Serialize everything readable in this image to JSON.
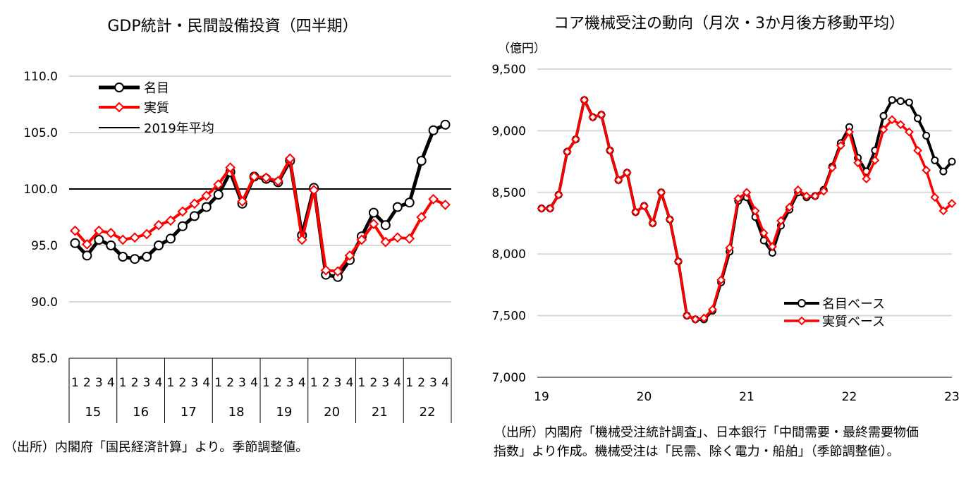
{
  "colors": {
    "nominal": "#000000",
    "real": "#ff0000",
    "grid": "#d9d9d9",
    "marker_fill": "#ffffff"
  },
  "chart_data": [
    {
      "type": "line",
      "title": "GDP統計・民間設備投資（四半期）",
      "ylim": [
        85,
        110
      ],
      "yticks": [
        "110.0",
        "105.0",
        "100.0",
        "95.0",
        "90.0",
        "85.0"
      ],
      "ytick_values": [
        110,
        105,
        100,
        95,
        90,
        85
      ],
      "quarter_labels": [
        "1",
        "2",
        "3",
        "4",
        "1",
        "2",
        "3",
        "4",
        "1",
        "2",
        "3",
        "4",
        "1",
        "2",
        "3",
        "4",
        "1",
        "2",
        "3",
        "4",
        "1",
        "2",
        "3",
        "4",
        "1",
        "2",
        "3",
        "4",
        "1",
        "2",
        "3",
        "4"
      ],
      "years": [
        "15",
        "16",
        "17",
        "18",
        "19",
        "20",
        "21",
        "22"
      ],
      "grid": true,
      "legend_position": "top-left",
      "reference_line": {
        "name": "2019年平均",
        "value": 100.0
      },
      "series": [
        {
          "name": "名目",
          "values": [
            95.2,
            94.1,
            95.5,
            95.0,
            94.0,
            93.8,
            94.0,
            95.0,
            95.6,
            96.7,
            97.6,
            98.4,
            99.5,
            101.5,
            98.7,
            101.1,
            100.9,
            100.6,
            102.5,
            95.9,
            100.1,
            92.4,
            92.2,
            93.7,
            95.8,
            97.9,
            96.8,
            98.4,
            98.8,
            102.5,
            105.2,
            105.7
          ]
        },
        {
          "name": "実質",
          "values": [
            96.3,
            95.1,
            96.3,
            96.1,
            95.5,
            95.7,
            96.0,
            96.8,
            97.2,
            98.0,
            98.7,
            99.4,
            100.4,
            101.9,
            98.9,
            101.1,
            101.0,
            100.7,
            102.7,
            95.5,
            99.9,
            92.8,
            92.7,
            94.1,
            95.5,
            96.9,
            95.3,
            95.7,
            95.6,
            97.5,
            99.1,
            98.6
          ]
        }
      ],
      "source": "（出所）内閣府「国民経済計算」より。季節調整値。"
    },
    {
      "type": "line",
      "title": "コア機械受注の動向（月次・3か月後方移動平均）",
      "ylabel": "（億円）",
      "ylim": [
        7000,
        9500
      ],
      "yticks": [
        "9,500",
        "9,000",
        "8,500",
        "8,000",
        "7,500",
        "7,000"
      ],
      "ytick_values": [
        9500,
        9000,
        8500,
        8000,
        7500,
        7000
      ],
      "xticks": [
        "19",
        "20",
        "21",
        "22",
        "23"
      ],
      "xtick_values": [
        0,
        12,
        24,
        36,
        48
      ],
      "grid": true,
      "legend_position": "bottom-right",
      "series": [
        {
          "name": "名目ベース",
          "values": [
            8370,
            8370,
            8480,
            8830,
            8930,
            9250,
            9110,
            9130,
            8840,
            8600,
            8660,
            8340,
            8390,
            8250,
            8500,
            8280,
            7940,
            7500,
            7470,
            7470,
            7540,
            7770,
            8020,
            8430,
            8460,
            8300,
            8110,
            8010,
            8230,
            8360,
            8500,
            8460,
            8470,
            8520,
            8710,
            8900,
            9030,
            8780,
            8670,
            8840,
            9120,
            9250,
            9240,
            9230,
            9100,
            8960,
            8760,
            8670,
            8750
          ]
        },
        {
          "name": "実質ベース",
          "values": [
            8370,
            8370,
            8480,
            8830,
            8930,
            9250,
            9110,
            9130,
            8840,
            8600,
            8660,
            8340,
            8390,
            8250,
            8500,
            8280,
            7940,
            7500,
            7470,
            7480,
            7550,
            7790,
            8050,
            8450,
            8500,
            8350,
            8170,
            8060,
            8270,
            8380,
            8520,
            8470,
            8470,
            8510,
            8700,
            8880,
            8990,
            8740,
            8610,
            8760,
            9010,
            9090,
            9050,
            8990,
            8840,
            8680,
            8460,
            8350,
            8410
          ]
        }
      ],
      "source_lines": [
        "（出所）内閣府「機械受注統計調査」、日本銀行「中間需要・最終需要物価",
        "指数」より作成。機械受注は「民需、除く電力・船舶」（季節調整値）。"
      ]
    }
  ]
}
